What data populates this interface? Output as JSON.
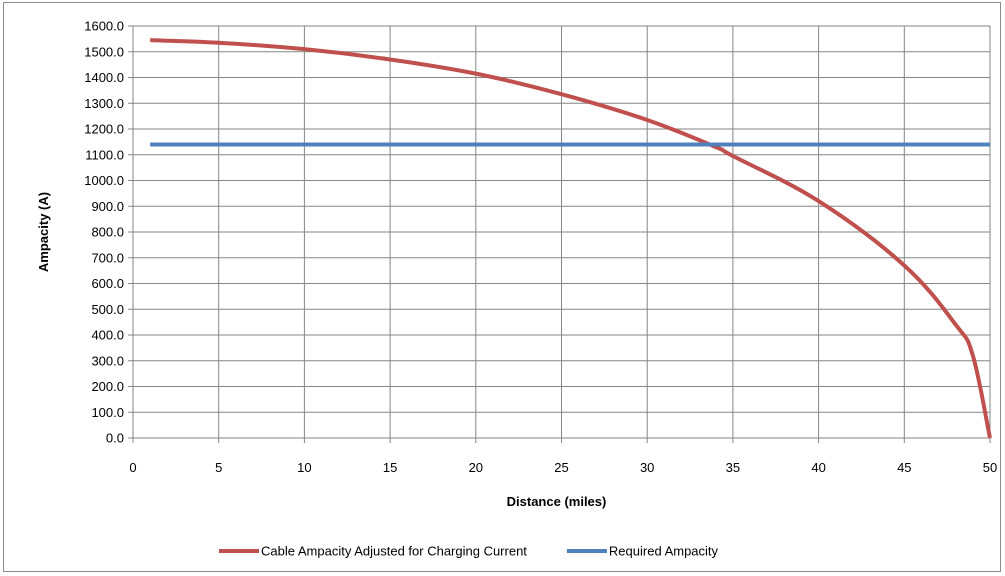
{
  "chart_data": {
    "type": "line",
    "title": "",
    "xlabel": "Distance (miles)",
    "ylabel": "Ampacity (A)",
    "xlim": [
      0,
      50
    ],
    "ylim": [
      0,
      1600
    ],
    "x_ticks": [
      "0",
      "5",
      "10",
      "15",
      "20",
      "25",
      "30",
      "35",
      "40",
      "45",
      "50"
    ],
    "y_ticks": [
      "0.0",
      "100.0",
      "200.0",
      "300.0",
      "400.0",
      "500.0",
      "600.0",
      "700.0",
      "800.0",
      "900.0",
      "1000.0",
      "1100.0",
      "1200.0",
      "1300.0",
      "1400.0",
      "1500.0",
      "1600.0"
    ],
    "grid": true,
    "legend_position": "bottom",
    "series": [
      {
        "name": "Cable Ampacity Adjusted for Charging Current",
        "color": "#c0504d",
        "x": [
          1,
          5,
          10,
          15,
          20,
          25,
          30,
          34,
          35,
          40,
          45,
          48,
          49,
          50
        ],
        "y": [
          1545,
          1535,
          1510,
          1470,
          1415,
          1335,
          1235,
          1130,
          1095,
          920,
          670,
          440,
          320,
          0
        ]
      },
      {
        "name": "Required Ampacity",
        "color": "#4f81bd",
        "x": [
          1,
          50
        ],
        "y": [
          1140,
          1140
        ]
      }
    ]
  }
}
